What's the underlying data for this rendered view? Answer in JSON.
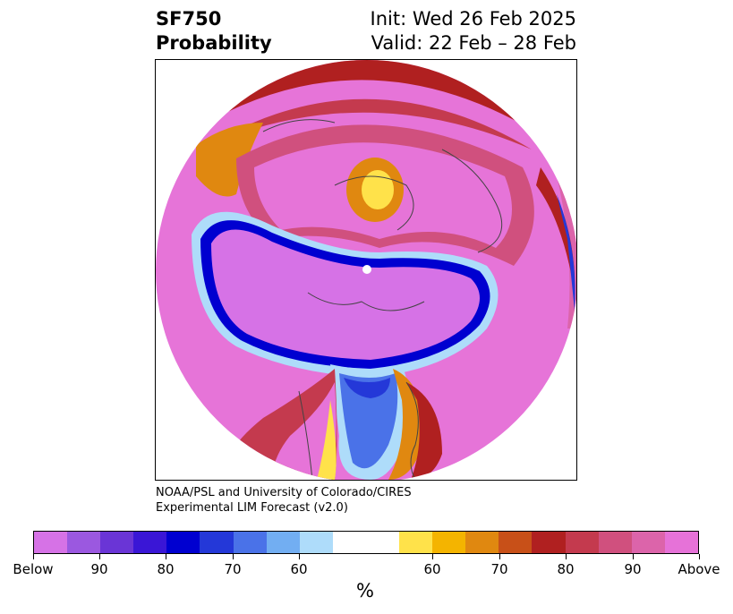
{
  "header": {
    "title_line1": "SF750",
    "title_line2": "Probability",
    "init_text": "Init: Wed 26 Feb 2025",
    "valid_text": "Valid: 22 Feb – 28 Feb"
  },
  "credit": {
    "line1": "NOAA/PSL and University of Colorado/CIRES",
    "line2": "Experimental LIM Forecast (v2.0)"
  },
  "colorbar": {
    "unit": "%",
    "colors": [
      "#d672e6",
      "#9b58e0",
      "#6a35d6",
      "#3a16d6",
      "#0000d0",
      "#2438d8",
      "#4a72e8",
      "#72aef2",
      "#aedcfa",
      "#ffffff",
      "#ffffff",
      "#ffe24a",
      "#f4b400",
      "#e08810",
      "#c85018",
      "#b02020",
      "#c43a4e",
      "#d0507e",
      "#dc64aa",
      "#e672d8"
    ],
    "tick_labels": [
      "Below",
      "90",
      "80",
      "70",
      "60",
      "60",
      "70",
      "80",
      "90",
      "Above"
    ]
  },
  "map": {
    "colors": {
      "below_strong": "#d672e6",
      "blue_dark": "#1a10d0",
      "blue_mid": "#3a5ee6",
      "blue_light": "#aedcfa",
      "above_strong": "#e674d8",
      "above_pink": "#dc64aa",
      "above_red": "#b02020",
      "above_orange": "#e08810",
      "above_yellow": "#ffe24a"
    }
  }
}
